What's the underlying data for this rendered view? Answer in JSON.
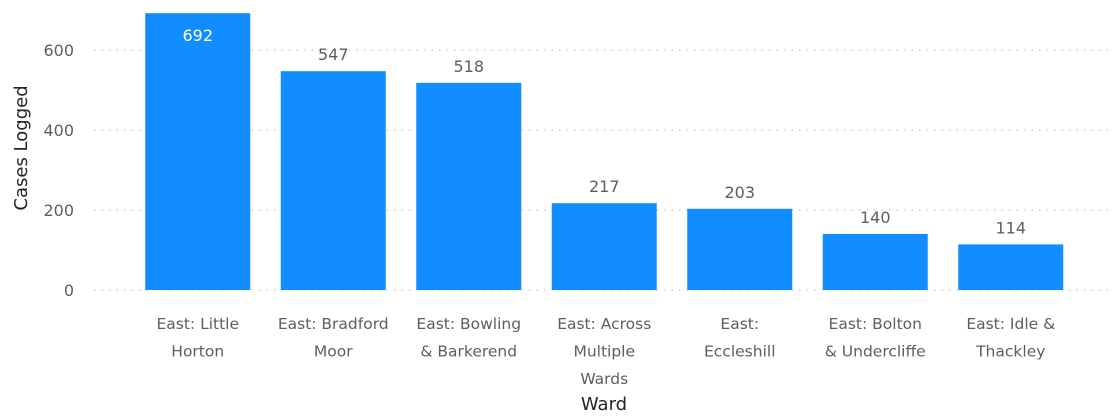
{
  "chart_data": {
    "type": "bar",
    "title": "",
    "xlabel": "Ward",
    "ylabel": "Cases Logged",
    "ylim": [
      0,
      700
    ],
    "yticks": [
      0,
      200,
      400,
      600
    ],
    "grid": true,
    "categories": [
      [
        "East: Little",
        "Horton"
      ],
      [
        "East: Bradford",
        "Moor"
      ],
      [
        "East: Bowling",
        "& Barkerend"
      ],
      [
        "East: Across",
        "Multiple",
        "Wards"
      ],
      [
        "East:",
        "Eccleshill"
      ],
      [
        "East: Bolton",
        "& Undercliffe"
      ],
      [
        "East: Idle &",
        "Thackley"
      ]
    ],
    "values": [
      692,
      547,
      518,
      217,
      203,
      140,
      114
    ],
    "data_labels": [
      "692",
      "547",
      "518",
      "217",
      "203",
      "140",
      "114"
    ],
    "bar_color": "#118dff",
    "inside_label_color": "#ffffff",
    "outside_label_color": "#605e5c"
  }
}
